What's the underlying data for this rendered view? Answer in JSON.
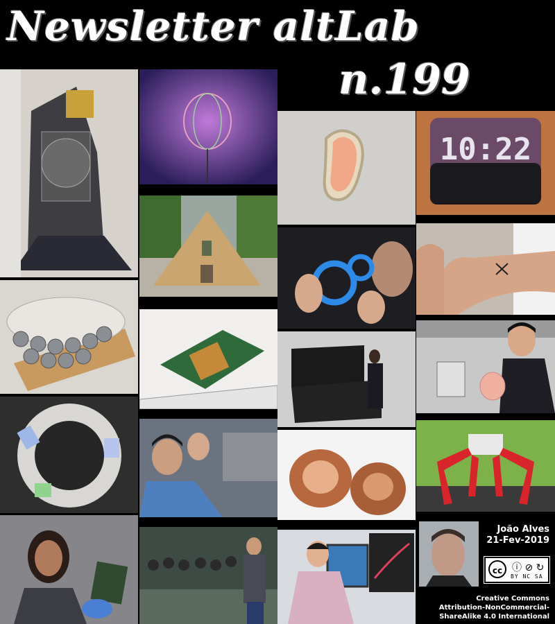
{
  "header": {
    "title": "Newsletter altLab",
    "issue": "n.199"
  },
  "author": {
    "name": "João Alves",
    "date": "21-Fev-2019"
  },
  "license": {
    "badge": "BY NC SA",
    "line1": "Creative Commons",
    "line2": "Attribution-NonCommercial-",
    "line3": "ShareAlike 4.0 International"
  },
  "tiles": [
    {
      "name": "satellite-photo",
      "bg": "#c9c2b6"
    },
    {
      "name": "led-lamp-photo",
      "bg": "#5a3a8e"
    },
    {
      "name": "bean-light-photo",
      "bg": "#cfcfcb"
    },
    {
      "name": "digital-clock-photo",
      "bg": "#b46a3b"
    },
    {
      "name": "pyramid-photo",
      "bg": "#8d9a6e"
    },
    {
      "name": "blue-goggles-photo",
      "bg": "#1b1b1e"
    },
    {
      "name": "arm-tattoo-photo",
      "bg": "#b9b1a7"
    },
    {
      "name": "ultrasonic-array-photo",
      "bg": "#d8d4cf"
    },
    {
      "name": "circuit-chip-photo",
      "bg": "#eeeeee"
    },
    {
      "name": "server-box-photo",
      "bg": "#c8c8c8"
    },
    {
      "name": "researcher-lab-photo",
      "bg": "#c0c0c0"
    },
    {
      "name": "ring-sensor-photo",
      "bg": "#2c2c2c"
    },
    {
      "name": "lab-workers-photo",
      "bg": "#5e6470"
    },
    {
      "name": "copper-parts-photo",
      "bg": "#f2f2f2"
    },
    {
      "name": "robot-spider-photo",
      "bg": "#7cae48"
    },
    {
      "name": "woman-board-photo",
      "bg": "#7b7b80"
    },
    {
      "name": "group-lab-photo",
      "bg": "#3e4a44"
    },
    {
      "name": "screen-pointing-photo",
      "bg": "#d2d6da"
    },
    {
      "name": "author-portrait-photo",
      "bg": "#9aa0a4"
    }
  ]
}
